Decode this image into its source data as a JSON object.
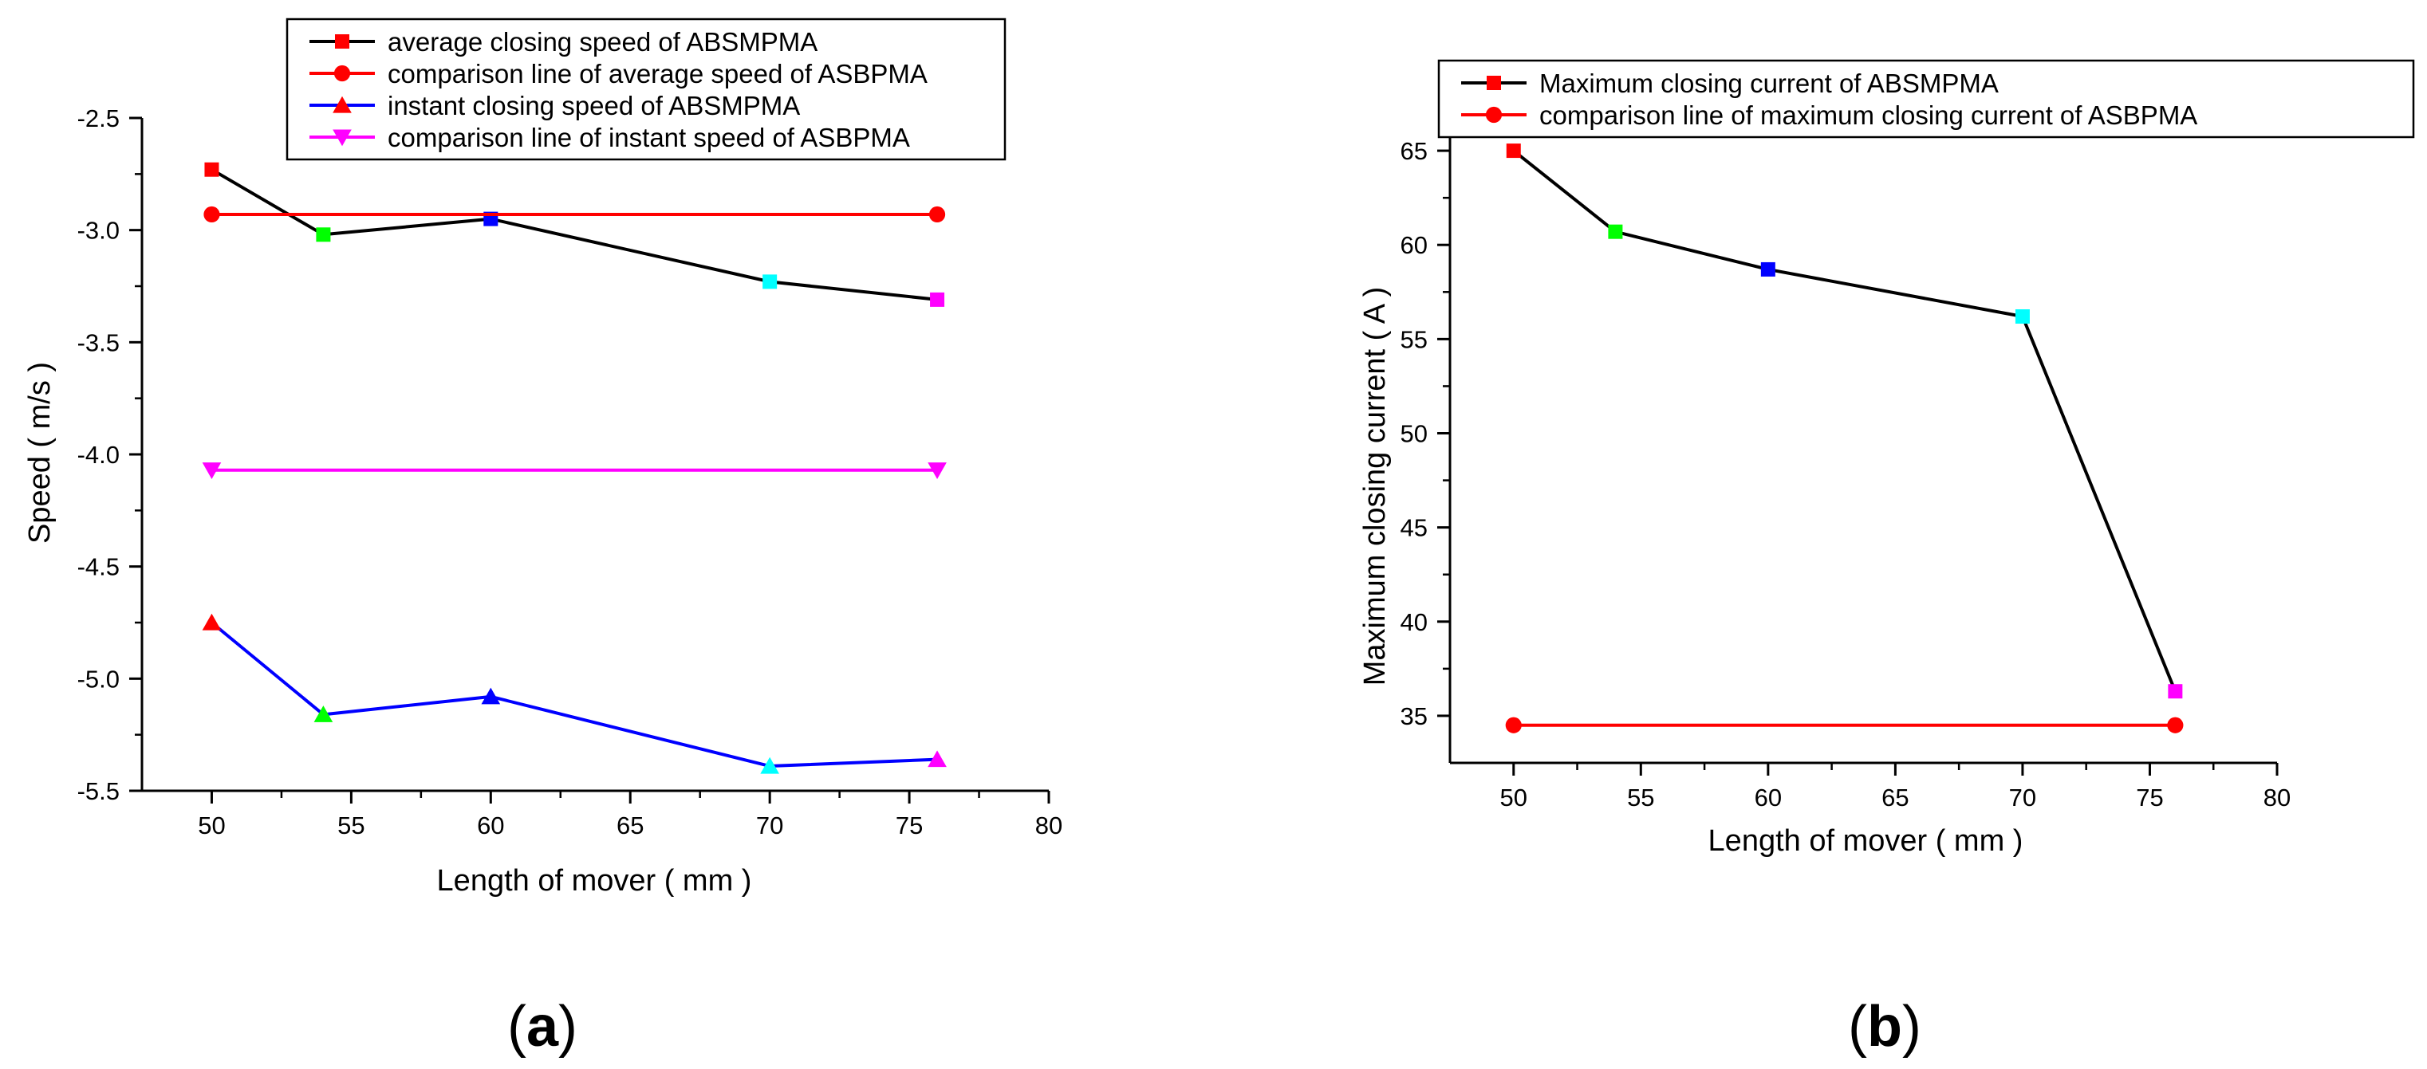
{
  "chart_data": [
    {
      "type": "line",
      "panel_label": "(a)",
      "panel_letter": "a",
      "xlabel": "Length of mover ( mm )",
      "ylabel": "Speed ( m/s )",
      "xlim": [
        47.5,
        80
      ],
      "ylim": [
        -5.5,
        -2.5
      ],
      "xticks": [
        50,
        55,
        60,
        65,
        70,
        75,
        80
      ],
      "xtick_labels": [
        "50",
        "55",
        "60",
        "65",
        "70",
        "75",
        "80"
      ],
      "yticks": [
        -2.5,
        -3.0,
        -3.5,
        -4.0,
        -4.5,
        -5.0,
        -5.5
      ],
      "ytick_labels": [
        "-2.5",
        "-3.0",
        "-3.5",
        "-4.0",
        "-4.5",
        "-5.0",
        "-5.5"
      ],
      "legend_position": "top",
      "series": [
        {
          "name": "average closing speed of  ABSMPMA",
          "x": [
            50,
            54,
            60,
            70,
            76
          ],
          "y": [
            -2.73,
            -3.02,
            -2.95,
            -3.23,
            -3.31
          ],
          "line_color": "#000000",
          "marker": "square",
          "point_colors": [
            "#ff0000",
            "#00ff00",
            "#0000ff",
            "#00ffff",
            "#ff00ff"
          ],
          "legend_marker_color": "#ff0000"
        },
        {
          "name": "comparison line of average speed of ASBPMA",
          "x": [
            50,
            76
          ],
          "y": [
            -2.93,
            -2.93
          ],
          "line_color": "#ff0000",
          "marker": "circle",
          "point_colors": [
            "#ff0000",
            "#ff0000"
          ],
          "legend_marker_color": "#ff0000"
        },
        {
          "name": "instant closing speed of  ABSMPMA",
          "x": [
            50,
            54,
            60,
            70,
            76
          ],
          "y": [
            -4.75,
            -5.16,
            -5.08,
            -5.39,
            -5.36
          ],
          "line_color": "#0000ff",
          "marker": "triangle-up",
          "point_colors": [
            "#ff0000",
            "#00ff00",
            "#0000ff",
            "#00ffff",
            "#ff00ff"
          ],
          "legend_marker_color": "#ff0000"
        },
        {
          "name": "comparison line of instant speed of ASBPMA",
          "x": [
            50,
            76
          ],
          "y": [
            -4.07,
            -4.07
          ],
          "line_color": "#ff00ff",
          "marker": "triangle-down",
          "point_colors": [
            "#ff00ff",
            "#ff00ff"
          ],
          "legend_marker_color": "#ff00ff"
        }
      ]
    },
    {
      "type": "line",
      "panel_label": "(b)",
      "panel_letter": "b",
      "xlabel": "Length of mover ( mm )",
      "ylabel": "Maximum closing current ( A )",
      "xlim": [
        47.5,
        80
      ],
      "ylim": [
        32.5,
        67.5
      ],
      "xticks": [
        50,
        55,
        60,
        65,
        70,
        75,
        80
      ],
      "xtick_labels": [
        "50",
        "55",
        "60",
        "65",
        "70",
        "75",
        "80"
      ],
      "yticks": [
        35,
        40,
        45,
        50,
        55,
        60,
        65
      ],
      "ytick_labels": [
        "35",
        "40",
        "45",
        "50",
        "55",
        "60",
        "65"
      ],
      "legend_position": "top",
      "series": [
        {
          "name": "Maximum closing current of  ABSMPMA",
          "x": [
            50,
            54,
            60,
            70,
            76
          ],
          "y": [
            65.0,
            60.7,
            58.7,
            56.2,
            36.3
          ],
          "line_color": "#000000",
          "marker": "square",
          "point_colors": [
            "#ff0000",
            "#00ff00",
            "#0000ff",
            "#00ffff",
            "#ff00ff"
          ],
          "legend_marker_color": "#ff0000"
        },
        {
          "name": "comparison line of maximum closing current  of ASBPMA",
          "x": [
            50,
            76
          ],
          "y": [
            34.5,
            34.5
          ],
          "line_color": "#ff0000",
          "marker": "circle",
          "point_colors": [
            "#ff0000",
            "#ff0000"
          ],
          "legend_marker_color": "#ff0000"
        }
      ]
    }
  ]
}
